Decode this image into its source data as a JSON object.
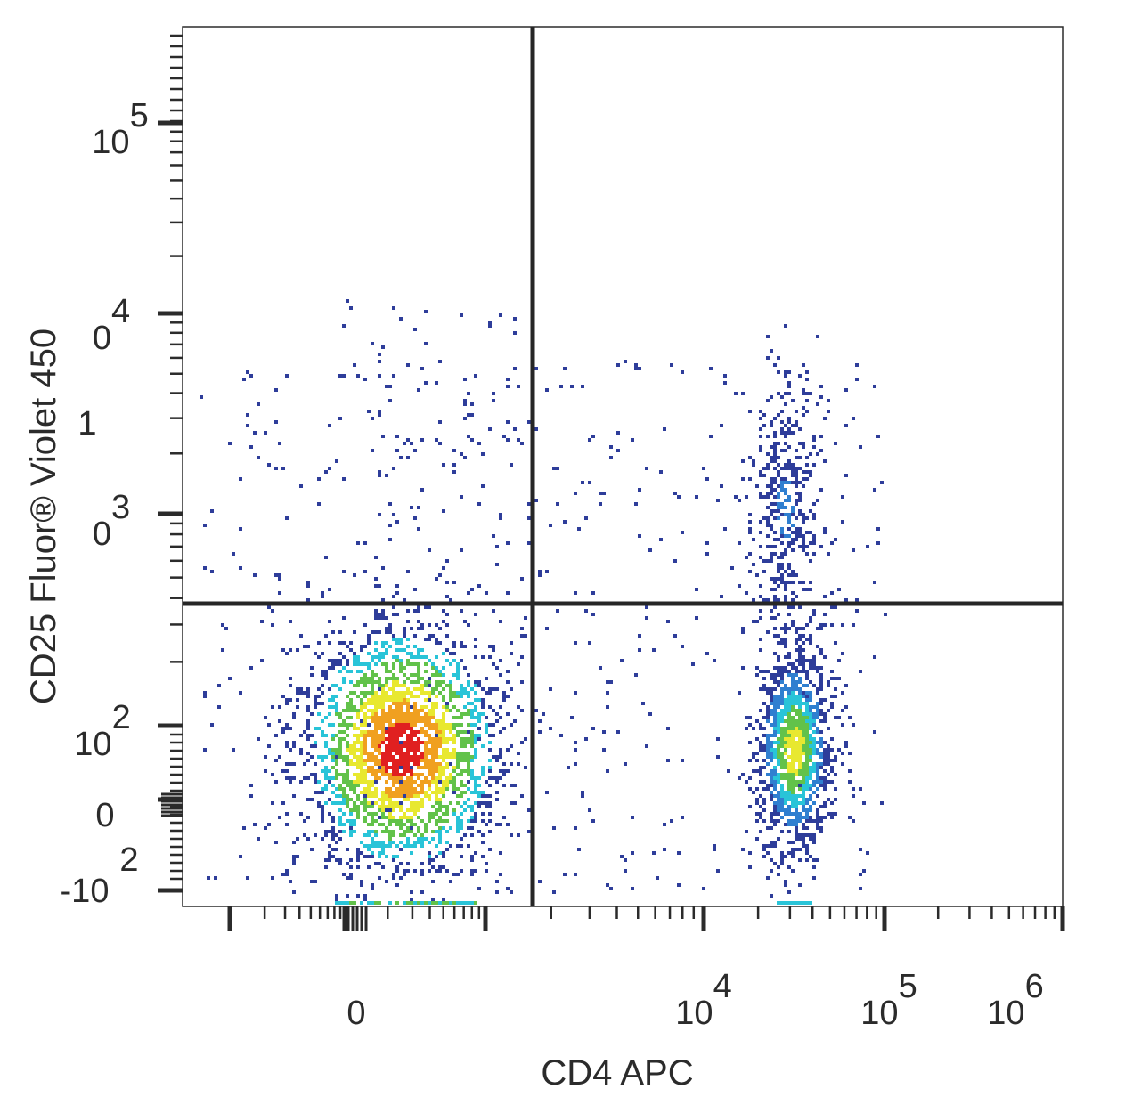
{
  "chart_data": {
    "type": "scatter",
    "subtype": "flow-cytometry-density-dot-plot",
    "xlabel": "CD4 APC",
    "ylabel": "CD25 Fluor® Violet 450",
    "x_scale": "biexponential",
    "y_scale": "biexponential",
    "x_tick_labels": [
      {
        "base": "0",
        "exp": ""
      },
      {
        "base": "10",
        "exp": "4"
      },
      {
        "base": "10",
        "exp": "5"
      },
      {
        "base": "10",
        "exp": "6"
      }
    ],
    "y_tick_labels": [
      {
        "base": "10",
        "exp": "5"
      },
      {
        "base": "0",
        "exp": "4"
      },
      {
        "base": "1",
        "exp": ""
      },
      {
        "base": "0",
        "exp": "3"
      },
      {
        "base": "10",
        "exp": "2"
      },
      {
        "base": "0",
        "exp": ""
      },
      {
        "base": "",
        "exp": "2"
      },
      {
        "base": "-10",
        "exp": ""
      }
    ],
    "quadrant_gate": {
      "x": 2000,
      "y": 400
    },
    "populations": [
      {
        "name_hint": "CD4- CD25- cluster",
        "x_center": 200,
        "y_center": 80
      },
      {
        "name_hint": "CD4+ CD25- cluster",
        "x_center": 25000,
        "y_center": 80
      },
      {
        "name_hint": "CD4+ CD25+ cluster",
        "x_center": 25000,
        "y_center": 1500
      }
    ],
    "density_colors": [
      "#2e3d9a",
      "#2f7fd0",
      "#29c4d8",
      "#62c24a",
      "#e8e830",
      "#f0a020",
      "#e02020"
    ],
    "grid": false,
    "legend": "none"
  }
}
